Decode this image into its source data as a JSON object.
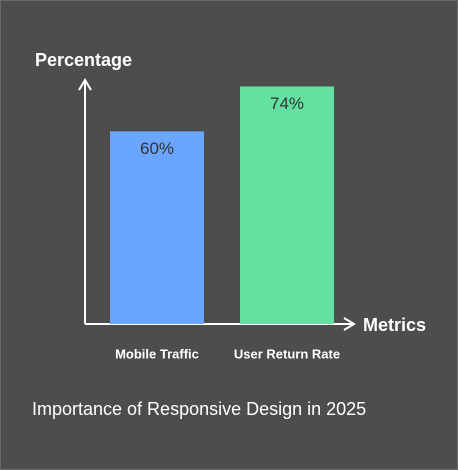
{
  "chart_data": {
    "type": "bar",
    "title": "Importance of Responsive Design in 2025",
    "y_label": "Percentage",
    "x_label": "Metrics",
    "categories": [
      "Mobile Traffic",
      "User Return Rate"
    ],
    "values": [
      60,
      74
    ],
    "value_labels": [
      "60%",
      "74%"
    ],
    "colors": [
      "#6aa5fe",
      "#64e0a0"
    ],
    "ylim": [
      0,
      76
    ]
  }
}
